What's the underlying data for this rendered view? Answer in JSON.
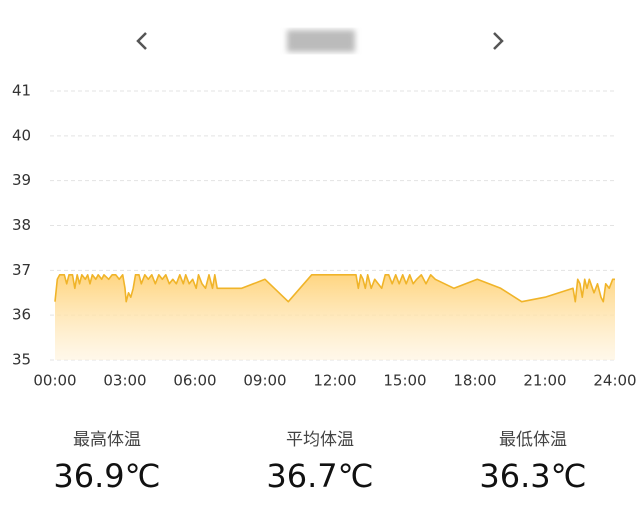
{
  "chart_data": {
    "type": "area",
    "x": [
      0,
      0.1,
      0.2,
      0.4,
      0.5,
      0.6,
      0.75,
      0.85,
      0.95,
      1.05,
      1.15,
      1.3,
      1.4,
      1.5,
      1.6,
      1.75,
      1.85,
      2.0,
      2.1,
      2.3,
      2.45,
      2.6,
      2.75,
      2.9,
      3.0,
      3.05,
      3.15,
      3.25,
      3.35,
      3.45,
      3.6,
      3.7,
      3.85,
      4.0,
      4.15,
      4.3,
      4.45,
      4.6,
      4.75,
      4.9,
      5.05,
      5.2,
      5.35,
      5.5,
      5.6,
      5.75,
      5.9,
      6.05,
      6.15,
      6.3,
      6.45,
      6.6,
      6.75,
      6.85,
      6.95,
      8.0,
      9.0,
      10.0,
      11.0,
      12.9,
      13.0,
      13.1,
      13.2,
      13.3,
      13.4,
      13.55,
      13.7,
      13.85,
      14.0,
      14.15,
      14.3,
      14.45,
      14.6,
      14.75,
      14.9,
      15.05,
      15.2,
      15.35,
      15.5,
      15.7,
      15.9,
      16.1,
      16.3,
      17.1,
      18.1,
      19.1,
      20.0,
      21.0,
      22.2,
      22.3,
      22.4,
      22.5,
      22.6,
      22.7,
      22.8,
      22.9,
      23.1,
      23.25,
      23.4,
      23.5,
      23.6,
      23.75,
      23.9,
      24.0
    ],
    "values": [
      36.3,
      36.8,
      36.9,
      36.9,
      36.7,
      36.9,
      36.9,
      36.6,
      36.9,
      36.7,
      36.9,
      36.8,
      36.9,
      36.7,
      36.9,
      36.8,
      36.9,
      36.8,
      36.9,
      36.8,
      36.9,
      36.9,
      36.8,
      36.9,
      36.6,
      36.3,
      36.5,
      36.4,
      36.6,
      36.9,
      36.9,
      36.7,
      36.9,
      36.8,
      36.9,
      36.7,
      36.9,
      36.8,
      36.9,
      36.7,
      36.8,
      36.7,
      36.9,
      36.7,
      36.9,
      36.7,
      36.8,
      36.6,
      36.9,
      36.7,
      36.6,
      36.9,
      36.6,
      36.9,
      36.6,
      36.6,
      36.8,
      36.3,
      36.9,
      36.9,
      36.6,
      36.9,
      36.8,
      36.6,
      36.9,
      36.6,
      36.8,
      36.7,
      36.6,
      36.9,
      36.9,
      36.7,
      36.9,
      36.7,
      36.9,
      36.7,
      36.9,
      36.7,
      36.8,
      36.9,
      36.7,
      36.9,
      36.8,
      36.6,
      36.8,
      36.6,
      36.3,
      36.4,
      36.6,
      36.3,
      36.8,
      36.7,
      36.4,
      36.8,
      36.6,
      36.8,
      36.5,
      36.7,
      36.4,
      36.3,
      36.7,
      36.6,
      36.8,
      36.8
    ],
    "color": "#f0b429",
    "xlim": [
      0,
      24
    ],
    "xticks": [
      {
        "value": 0,
        "label": "00:00"
      },
      {
        "value": 3,
        "label": "03:00"
      },
      {
        "value": 6,
        "label": "06:00"
      },
      {
        "value": 9,
        "label": "09:00"
      },
      {
        "value": 12,
        "label": "12:00"
      },
      {
        "value": 15,
        "label": "15:00"
      },
      {
        "value": 18,
        "label": "18:00"
      },
      {
        "value": 21,
        "label": "21:00"
      },
      {
        "value": 24,
        "label": "24:00"
      }
    ],
    "ylim": [
      35,
      41
    ],
    "yticks": [
      35,
      36,
      37,
      38,
      39,
      40,
      41
    ],
    "grid": true
  },
  "stats": [
    {
      "label": "最高体温",
      "value": "36.9℃"
    },
    {
      "label": "平均体温",
      "value": "36.7℃"
    },
    {
      "label": "最低体温",
      "value": "36.3℃"
    }
  ]
}
